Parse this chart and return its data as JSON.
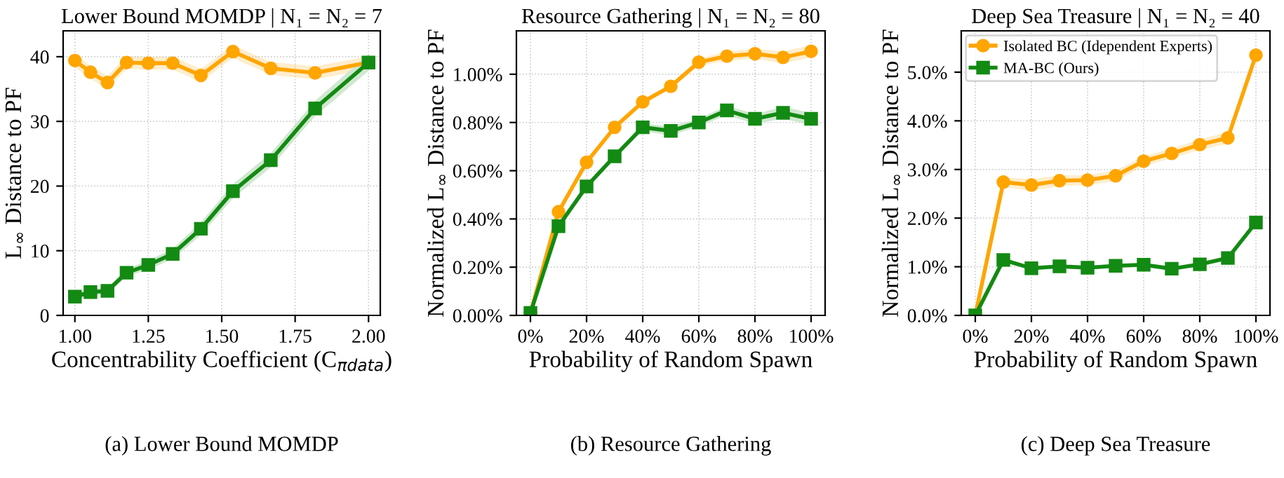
{
  "chart_data": [
    {
      "type": "line",
      "title": "Lower Bound MOMDP | N₁ = N₂ = 7",
      "xlabel": "Concentrability Coefficient (C$_{πdata}$)",
      "ylabel": "L$_{∞}$ Distance to PF",
      "x": [
        1.0,
        1.053,
        1.111,
        1.176,
        1.25,
        1.333,
        1.429,
        1.538,
        1.667,
        1.818,
        2.0
      ],
      "series": [
        {
          "color": "#ffa500",
          "marker": "circle",
          "values": [
            39.4,
            37.6,
            36.0,
            39.1,
            39.0,
            39.0,
            37.1,
            40.8,
            38.2,
            37.5,
            39.1
          ],
          "lower": [
            38.4,
            36.6,
            35.0,
            38.1,
            38.0,
            38.0,
            36.1,
            39.8,
            37.2,
            36.5,
            38.1
          ],
          "upper": [
            40.4,
            38.6,
            37.0,
            40.1,
            40.0,
            40.0,
            38.1,
            41.8,
            39.2,
            38.5,
            40.1
          ]
        },
        {
          "color": "#138a13",
          "marker": "square",
          "values": [
            2.9,
            3.6,
            3.8,
            6.6,
            7.8,
            9.5,
            13.4,
            19.2,
            24.0,
            32.0,
            39.1
          ],
          "lower": [
            2.4,
            3.1,
            3.3,
            6.0,
            7.1,
            8.7,
            12.4,
            18.1,
            22.9,
            30.8,
            37.8
          ],
          "upper": [
            3.4,
            4.1,
            4.3,
            7.2,
            8.5,
            10.3,
            14.4,
            20.3,
            25.1,
            33.2,
            40.4
          ]
        }
      ],
      "xlim": [
        0.96,
        2.04
      ],
      "xticks": [
        {
          "value": 1.0,
          "label": "1.00"
        },
        1.25,
        {
          "value": 1.5,
          "label": "1.50"
        },
        1.75,
        {
          "value": 2.0,
          "label": "2.00"
        }
      ],
      "ylim": [
        0,
        44
      ],
      "yticks": [
        0,
        10,
        20,
        30,
        40
      ],
      "grid": true,
      "annotations": [
        "(a) Lower Bound MOMDP"
      ]
    },
    {
      "type": "line",
      "title": "Resource Gathering | N₁ = N₂ = 80",
      "xlabel": "Probability of Random Spawn",
      "ylabel": "Normalized L$_{∞}$ Distance to PF",
      "x": [
        0,
        10,
        20,
        30,
        40,
        50,
        60,
        70,
        80,
        90,
        100
      ],
      "series": [
        {
          "color": "#ffa500",
          "marker": "circle",
          "values": [
            0.01,
            0.43,
            0.635,
            0.78,
            0.885,
            0.95,
            1.05,
            1.075,
            1.085,
            1.07,
            1.095
          ],
          "lower": [
            0.0,
            0.42,
            0.625,
            0.77,
            0.875,
            0.94,
            1.035,
            1.055,
            1.065,
            1.045,
            1.07
          ],
          "upper": [
            0.02,
            0.44,
            0.645,
            0.79,
            0.895,
            0.96,
            1.065,
            1.095,
            1.105,
            1.095,
            1.12
          ]
        },
        {
          "color": "#138a13",
          "marker": "square",
          "values": [
            0.01,
            0.37,
            0.535,
            0.66,
            0.78,
            0.765,
            0.8,
            0.85,
            0.815,
            0.84,
            0.815
          ],
          "lower": [
            0.0,
            0.36,
            0.525,
            0.65,
            0.765,
            0.745,
            0.785,
            0.83,
            0.795,
            0.815,
            0.79
          ],
          "upper": [
            0.02,
            0.38,
            0.545,
            0.67,
            0.795,
            0.785,
            0.815,
            0.87,
            0.835,
            0.865,
            0.84
          ]
        }
      ],
      "xlim": [
        -5,
        105
      ],
      "xticks": [
        {
          "value": 0,
          "label": "0%"
        },
        {
          "value": 20,
          "label": "20%"
        },
        {
          "value": 40,
          "label": "40%"
        },
        {
          "value": 60,
          "label": "60%"
        },
        {
          "value": 80,
          "label": "80%"
        },
        {
          "value": 100,
          "label": "100%"
        }
      ],
      "ylim": [
        0,
        1.18
      ],
      "yticks": [
        {
          "value": 0,
          "label": "0.00%"
        },
        {
          "value": 0.2,
          "label": "0.20%"
        },
        {
          "value": 0.4,
          "label": "0.40%"
        },
        {
          "value": 0.6,
          "label": "0.60%"
        },
        {
          "value": 0.8,
          "label": "0.80%"
        },
        {
          "value": 1.0,
          "label": "1.00%"
        }
      ],
      "grid": true,
      "annotations": [
        "(b) Resource Gathering"
      ]
    },
    {
      "type": "line",
      "title": "Deep Sea Treasure | N₁ = N₂ = 40",
      "xlabel": "Probability of Random Spawn",
      "ylabel": "Normalized L$_{∞}$ Distance to PF",
      "x": [
        0,
        10,
        20,
        30,
        40,
        50,
        60,
        70,
        80,
        90,
        100
      ],
      "series": [
        {
          "name": "Isolated BC (Idependent Experts)",
          "color": "#ffa500",
          "marker": "circle",
          "values": [
            0.0,
            2.74,
            2.68,
            2.77,
            2.78,
            2.87,
            3.17,
            3.33,
            3.51,
            3.65,
            5.35
          ],
          "lower": [
            0.0,
            2.64,
            2.56,
            2.66,
            2.68,
            2.76,
            3.07,
            3.23,
            3.4,
            3.53,
            5.3
          ],
          "upper": [
            0.0,
            2.84,
            2.8,
            2.88,
            2.88,
            2.98,
            3.27,
            3.43,
            3.62,
            3.77,
            5.4
          ]
        },
        {
          "name": "MA-BC (Ours)",
          "color": "#138a13",
          "marker": "square",
          "values": [
            0.0,
            1.14,
            0.97,
            1.01,
            0.98,
            1.02,
            1.04,
            0.96,
            1.05,
            1.18,
            1.91
          ],
          "lower": [
            0.0,
            1.09,
            0.93,
            0.97,
            0.94,
            0.98,
            1.0,
            0.92,
            1.0,
            1.13,
            1.88
          ],
          "upper": [
            0.0,
            1.19,
            1.01,
            1.05,
            1.02,
            1.06,
            1.08,
            1.0,
            1.1,
            1.23,
            1.94
          ]
        }
      ],
      "xlim": [
        -5,
        105
      ],
      "xticks": [
        {
          "value": 0,
          "label": "0%"
        },
        {
          "value": 20,
          "label": "20%"
        },
        {
          "value": 40,
          "label": "40%"
        },
        {
          "value": 60,
          "label": "60%"
        },
        {
          "value": 80,
          "label": "80%"
        },
        {
          "value": 100,
          "label": "100%"
        }
      ],
      "ylim": [
        0,
        5.85
      ],
      "yticks": [
        {
          "value": 0,
          "label": "0.0%"
        },
        {
          "value": 1,
          "label": "1.0%"
        },
        {
          "value": 2,
          "label": "2.0%"
        },
        {
          "value": 3,
          "label": "3.0%"
        },
        {
          "value": 4,
          "label": "4.0%"
        },
        {
          "value": 5,
          "label": "5.0%"
        }
      ],
      "grid": true,
      "legend": "top left",
      "annotations": [
        "(c) Deep Sea Treasure"
      ]
    }
  ]
}
